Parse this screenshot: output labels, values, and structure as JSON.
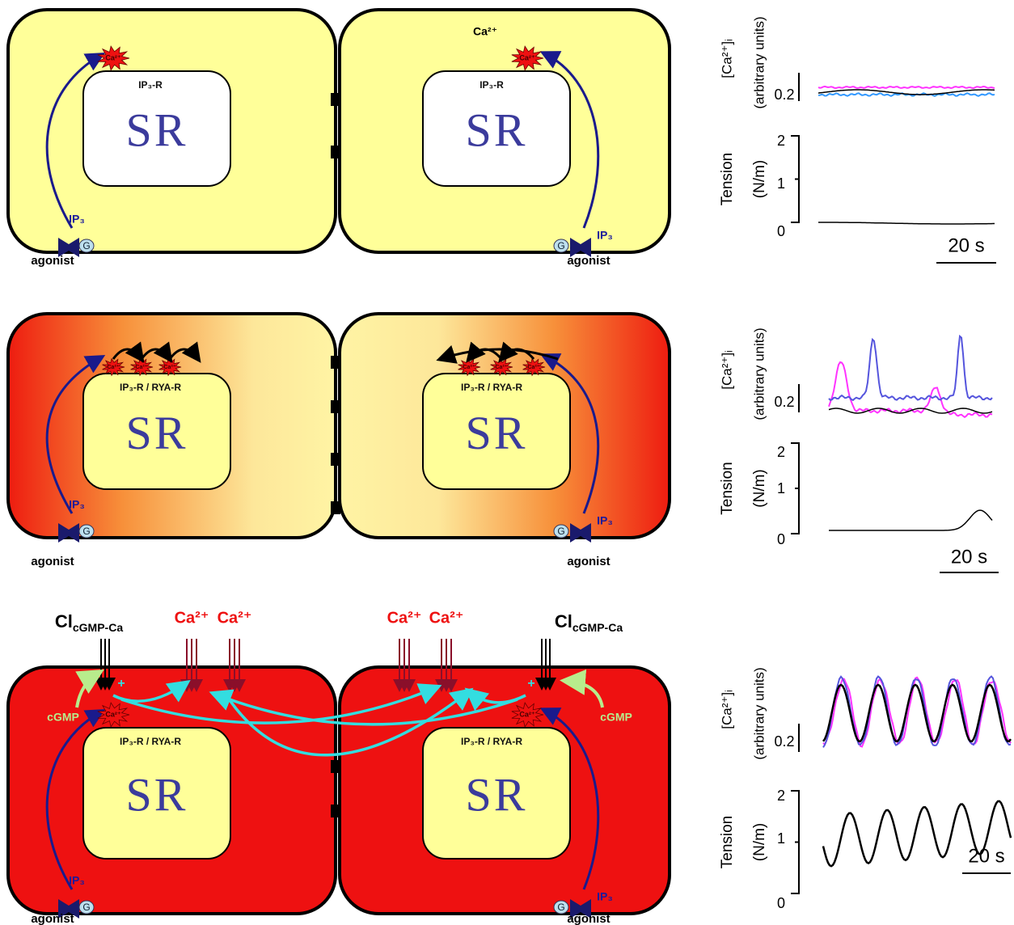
{
  "panels": [
    {
      "cells": [
        {
          "receptor": "IP₃-R",
          "store": "SR",
          "messenger": "IP₃",
          "g_protein": "G",
          "agonist": "agonist",
          "spark": "Ca²⁺"
        },
        {
          "receptor": "IP₃-R",
          "store": "SR",
          "messenger": "IP₃",
          "g_protein": "G",
          "agonist": "agonist",
          "spark": "Ca²⁺"
        }
      ],
      "extracellular": "Ca²⁺",
      "trace": {
        "ca_label": "[Ca²⁺]ᵢ",
        "ca_units": "(arbitrary units)",
        "ca_tick": "0.2",
        "tension_label": "Tension",
        "tension_units": "(N/m)",
        "tension_ticks": [
          "0",
          "1",
          "2"
        ],
        "scale_bar": "20 s"
      }
    },
    {
      "cells": [
        {
          "receptor": "IP₃-R / RYA-R",
          "store": "SR",
          "messenger": "IP₃",
          "g_protein": "G",
          "agonist": "agonist",
          "spark": "Ca²⁺"
        },
        {
          "receptor": "IP₃-R / RYA-R",
          "store": "SR",
          "messenger": "IP₃",
          "g_protein": "G",
          "agonist": "agonist",
          "spark": "Ca²⁺"
        }
      ],
      "trace": {
        "ca_label": "[Ca²⁺]ᵢ",
        "ca_units": "(arbitrary units)",
        "ca_tick": "0.2",
        "tension_label": "Tension",
        "tension_units": "(N/m)",
        "tension_ticks": [
          "0",
          "1",
          "2"
        ],
        "scale_bar": "20 s"
      }
    },
    {
      "cells": [
        {
          "receptor": "IP₃-R / RYA-R",
          "store": "SR",
          "messenger": "IP₃",
          "g_protein": "G",
          "agonist": "agonist",
          "spark": "Ca²⁺",
          "chloride": {
            "base": "Cl",
            "sub": "cGMP-Ca"
          },
          "influx": [
            "Ca²⁺",
            "Ca²⁺"
          ],
          "cgmp": "cGMP",
          "plus": "+"
        },
        {
          "receptor": "IP₃-R / RYA-R",
          "store": "SR",
          "messenger": "IP₃",
          "g_protein": "G",
          "agonist": "agonist",
          "spark": "Ca²⁺",
          "chloride": {
            "base": "Cl",
            "sub": "cGMP-Ca"
          },
          "influx": [
            "Ca²⁺",
            "Ca²⁺"
          ],
          "cgmp": "cGMP",
          "plus": "+"
        }
      ],
      "trace": {
        "ca_label": "[Ca²⁺]ᵢ",
        "ca_units": "(arbitrary units)",
        "ca_tick": "0.2",
        "tension_label": "Tension",
        "tension_units": "(N/m)",
        "tension_ticks": [
          "0",
          "1",
          "2"
        ],
        "scale_bar": "20 s"
      }
    }
  ]
}
